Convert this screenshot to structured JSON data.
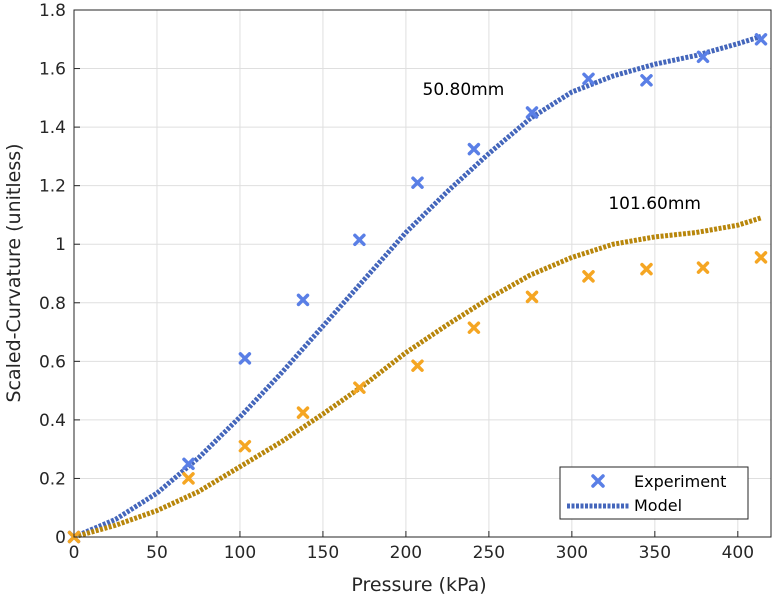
{
  "chart_data": {
    "type": "line",
    "title": "",
    "xlabel": "Pressure (kPa)",
    "ylabel": "Scaled-Curvature (unitless)",
    "xlim": [
      0,
      420
    ],
    "ylim": [
      0,
      1.8
    ],
    "xticks": [
      0,
      50,
      100,
      150,
      200,
      250,
      300,
      350,
      400
    ],
    "yticks": [
      0,
      0.2,
      0.4,
      0.6,
      0.8,
      1,
      1.2,
      1.4,
      1.6,
      1.8
    ],
    "xtick_labels": [
      "0",
      "50",
      "100",
      "150",
      "200",
      "250",
      "300",
      "350",
      "400"
    ],
    "ytick_labels": [
      "0",
      "0.2",
      "0.4",
      "0.6",
      "0.8",
      "1",
      "1.2",
      "1.4",
      "1.6",
      "1.8"
    ],
    "grid": true,
    "legend": {
      "position": "bottom-right",
      "entries": [
        {
          "label": "Experiment",
          "style": "marker-x",
          "color": "#5a7fe6"
        },
        {
          "label": "Model",
          "style": "dotted-line",
          "color": "#4466bb"
        }
      ]
    },
    "annotations": [
      {
        "text": "50.80mm",
        "x": 210,
        "y": 1.51
      },
      {
        "text": "101.60mm",
        "x": 322,
        "y": 1.12
      }
    ],
    "series": [
      {
        "kind": "experiment",
        "color": "#5a7fe6",
        "x": [
          0,
          69,
          103,
          138,
          172,
          207,
          241,
          276,
          310,
          345,
          379,
          414
        ],
        "y": [
          0,
          0.25,
          0.61,
          0.81,
          1.015,
          1.21,
          1.325,
          1.45,
          1.565,
          1.56,
          1.64,
          1.7
        ]
      },
      {
        "kind": "experiment",
        "color": "#f5a623",
        "x": [
          0,
          69,
          103,
          138,
          172,
          207,
          241,
          276,
          310,
          345,
          379,
          414
        ],
        "y": [
          0,
          0.2,
          0.31,
          0.425,
          0.51,
          0.585,
          0.715,
          0.82,
          0.89,
          0.915,
          0.92,
          0.955
        ]
      },
      {
        "kind": "model",
        "color": "#4466bb",
        "x": [
          0,
          25,
          50,
          75,
          100,
          125,
          150,
          175,
          200,
          225,
          250,
          275,
          300,
          325,
          350,
          375,
          400,
          414
        ],
        "y": [
          0,
          0.06,
          0.15,
          0.27,
          0.41,
          0.56,
          0.72,
          0.88,
          1.04,
          1.18,
          1.31,
          1.43,
          1.52,
          1.575,
          1.615,
          1.645,
          1.685,
          1.71
        ]
      },
      {
        "kind": "model",
        "color": "#b8860b",
        "x": [
          0,
          25,
          50,
          75,
          100,
          125,
          150,
          175,
          200,
          225,
          250,
          275,
          300,
          325,
          350,
          375,
          400,
          414
        ],
        "y": [
          0,
          0.04,
          0.09,
          0.155,
          0.24,
          0.325,
          0.42,
          0.52,
          0.63,
          0.725,
          0.815,
          0.895,
          0.955,
          1.0,
          1.025,
          1.04,
          1.065,
          1.09
        ]
      }
    ]
  }
}
